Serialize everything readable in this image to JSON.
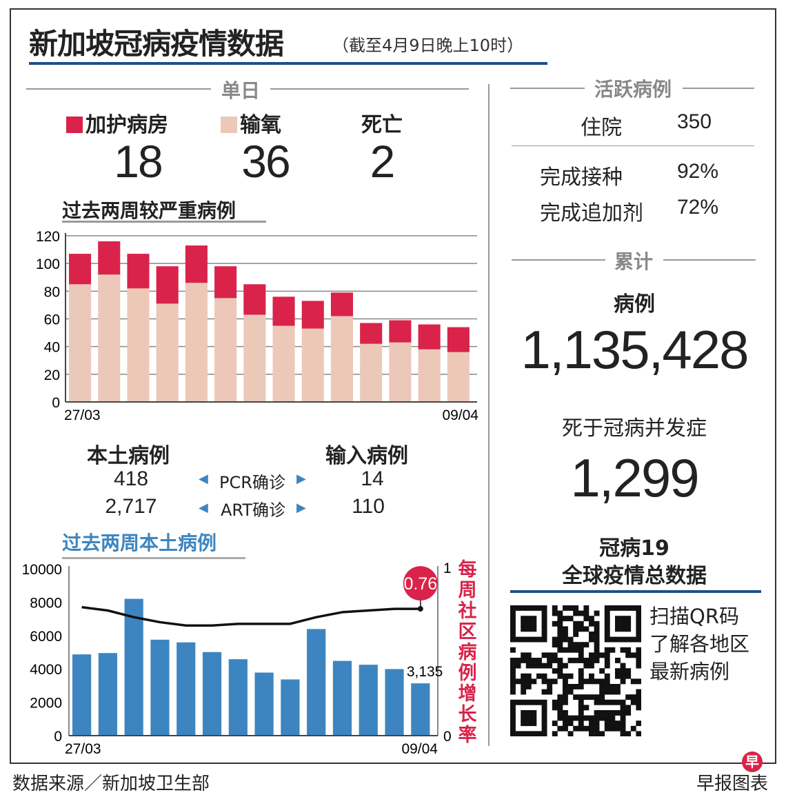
{
  "header": {
    "title": "新加坡冠病疫情数据",
    "subtitle": "（截至4月9日晚上10时）"
  },
  "daily": {
    "section": "单日",
    "icu_label": "加护病房",
    "icu": "18",
    "oxygen_label": "输氧",
    "oxygen": "36",
    "death_label": "死亡",
    "death": "2"
  },
  "severe": {
    "title": "过去两周较严重病例"
  },
  "cases": {
    "local_label": "本土病例",
    "imported_label": "输入病例",
    "pcr_label": "PCR确诊",
    "art_label": "ART确诊",
    "local_pcr": "418",
    "local_art": "2,717",
    "imported_pcr": "14",
    "imported_art": "110"
  },
  "local": {
    "title": "过去两周本土病例",
    "rate_label": "每周社区病例增长率",
    "last_value_label": "3,135",
    "rate_badge": "0.76"
  },
  "active": {
    "section": "活跃病例",
    "hospital_label": "住院",
    "hospital": "350",
    "vacc_label": "完成接种",
    "vacc": "92%",
    "booster_label": "完成追加剂",
    "booster": "72%"
  },
  "cumulative": {
    "section": "累计",
    "cases_label": "病例",
    "cases": "1,135,428",
    "deaths_label": "死于冠病并发症",
    "deaths": "1,299"
  },
  "global": {
    "line1": "冠病19",
    "line2": "全球疫情总数据",
    "qr_text": [
      "扫描QR码",
      "了解各地区",
      "最新病例"
    ]
  },
  "footer": {
    "source": "数据来源／新加坡卫生部",
    "credit": "早报图表",
    "logo": "早"
  },
  "colors": {
    "icu": "#d9234a",
    "oxygen": "#ecc8b8",
    "local_bars": "#3d85c0",
    "accent_line": "#1f4e8c"
  },
  "chart_data": [
    {
      "type": "bar",
      "stacked": true,
      "title": "过去两周较严重病例",
      "x_tick_labels": [
        "27/03",
        "09/04"
      ],
      "ylim": [
        0,
        120
      ],
      "yticks": [
        0,
        20,
        40,
        60,
        80,
        100,
        120
      ],
      "grid": true,
      "series": [
        {
          "name": "输氧",
          "values": [
            85,
            92,
            82,
            71,
            86,
            75,
            63,
            55,
            53,
            62,
            42,
            43,
            38,
            36
          ]
        },
        {
          "name": "加护病房",
          "values": [
            22,
            24,
            25,
            27,
            27,
            23,
            22,
            21,
            20,
            17,
            15,
            16,
            18,
            18
          ]
        }
      ]
    },
    {
      "type": "bar",
      "title": "过去两周本土病例",
      "x_tick_labels": [
        "27/03",
        "09/04"
      ],
      "ylim": [
        0,
        10000
      ],
      "yticks": [
        0,
        2000,
        4000,
        6000,
        8000,
        10000
      ],
      "y2lim": [
        0,
        1
      ],
      "y2ticks": [
        0,
        1
      ],
      "grid": false,
      "values": [
        4870,
        4950,
        8200,
        5750,
        5590,
        5010,
        4580,
        3780,
        3370,
        6390,
        4480,
        4250,
        3990,
        3135
      ],
      "line": {
        "name": "每周社区病例增长率",
        "values": [
          0.77,
          0.75,
          0.71,
          0.68,
          0.66,
          0.66,
          0.67,
          0.67,
          0.67,
          0.71,
          0.74,
          0.75,
          0.76,
          0.76
        ]
      }
    }
  ]
}
